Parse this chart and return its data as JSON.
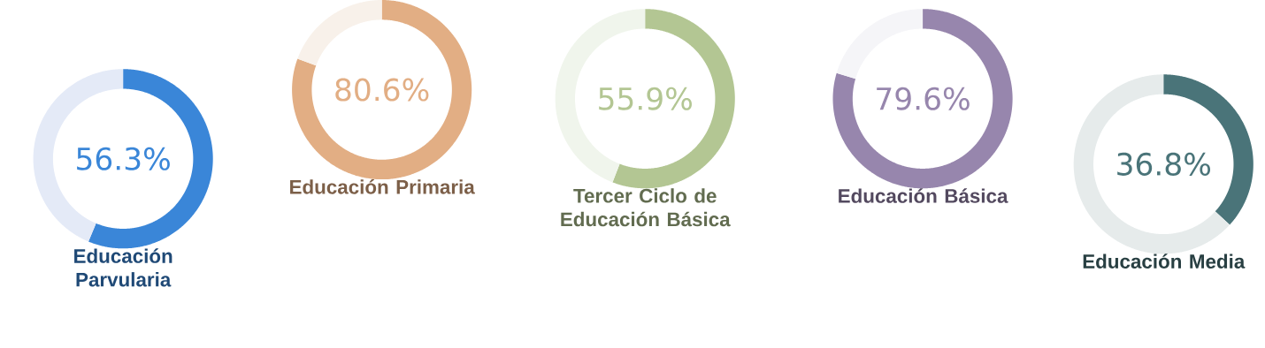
{
  "chart_data": [
    {
      "type": "donut",
      "title": "Educación Parvularia",
      "categories": [
        null,
        null
      ],
      "values": [
        56.3,
        43.7
      ],
      "colors": [
        "#3a86d8",
        "#e4eaf7"
      ],
      "value_labels": [
        "56.3%",
        null
      ]
    },
    {
      "type": "donut",
      "title": "Educación Primaria",
      "categories": [
        null,
        null
      ],
      "values": [
        80.6,
        19.4
      ],
      "colors": [
        "#e2ae84",
        "#f8f1ea"
      ],
      "value_labels": [
        "80.6%",
        null
      ]
    },
    {
      "type": "donut",
      "title": "Tercer Ciclo de Educación Básica",
      "categories": [
        null,
        null
      ],
      "values": [
        55.9,
        44.1
      ],
      "colors": [
        "#b3c693",
        "#f0f5ec"
      ],
      "value_labels": [
        "55.9%",
        null
      ]
    },
    {
      "type": "donut",
      "title": "Educación Básica",
      "categories": [
        null,
        null
      ],
      "values": [
        79.6,
        20.4
      ],
      "colors": [
        "#9786ad",
        "#f5f5f8"
      ],
      "value_labels": [
        "79.6%",
        null
      ]
    },
    {
      "type": "donut",
      "title": "Educación Media",
      "categories": [
        null,
        null
      ],
      "values": [
        36.8,
        63.2
      ],
      "colors": [
        "#4a7479",
        "#e6ebeb"
      ],
      "value_labels": [
        "36.8%",
        null
      ]
    }
  ]
}
